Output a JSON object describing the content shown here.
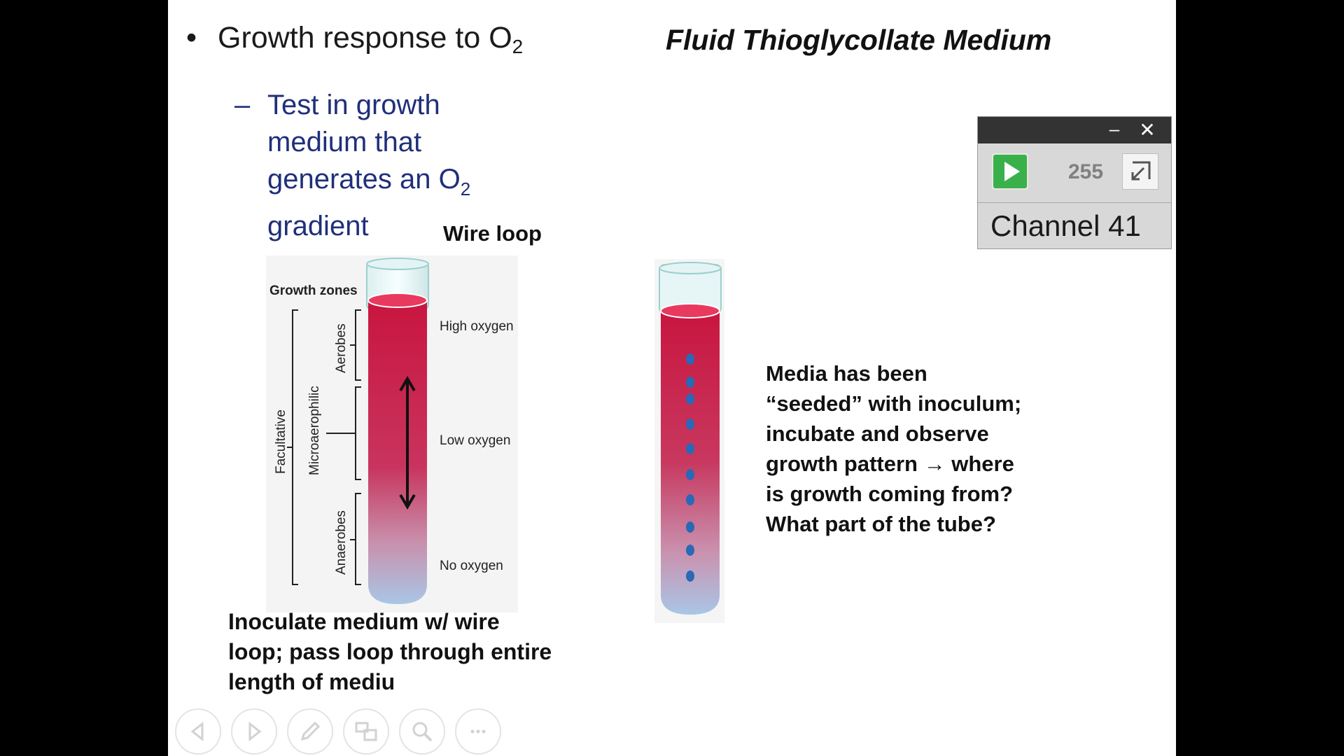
{
  "slide": {
    "bullet_text": "Growth response to O",
    "bullet_sub": "2",
    "heading": "Fluid Thioglycollate Medium",
    "sub_bullet_dash": "–",
    "sub_bullet_line1": "Test in growth",
    "sub_bullet_line2": "medium that",
    "sub_bullet_line3_pre": "generates an O",
    "sub_bullet_line3_sub": "2",
    "sub_bullet_line4": "gradient",
    "wire_loop_label": "Wire loop",
    "inoculate_line1": "Inoculate medium w/ wire",
    "inoculate_line2": "loop; pass loop through entire",
    "inoculate_line3": "length of mediu",
    "media_line1": "Media has been",
    "media_line2": "“seeded” with inoculum;",
    "media_line3": "incubate and observe",
    "media_line4": "growth pattern → where",
    "media_line5": "is growth coming from?",
    "media_line6": "What part of the tube?"
  },
  "figure": {
    "growth_zones": "Growth zones",
    "facultative": "Facultative",
    "microaerophilic": "Microaerophilic",
    "aerobes": "Aerobes",
    "anaerobes": "Anaerobes",
    "high_oxygen": "High oxygen",
    "low_oxygen": "Low oxygen",
    "no_oxygen": "No oxygen"
  },
  "widget": {
    "minimize_symbol": "–",
    "close_symbol": "✕",
    "count": "255",
    "channel": "Channel 41",
    "play_icon": "play-icon",
    "expand_icon": "expand-icon"
  },
  "nav": {
    "icons": [
      "previous-icon",
      "next-icon",
      "pen-icon",
      "slides-icon",
      "zoom-icon",
      "more-icon"
    ],
    "more_label": "···"
  },
  "colors": {
    "medium_red": "#c8153f",
    "anaerobic_blue": "#a9c6e6",
    "sub_bullet_text": "#1f2f7a",
    "dot_blue": "#2a68b8",
    "play_green": "#3ab04a"
  }
}
